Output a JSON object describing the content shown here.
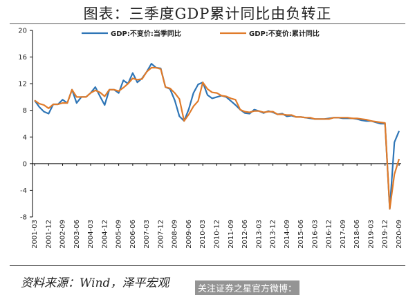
{
  "title": "图表：三季度GDP累计同比由负转正",
  "source": "资料来源：Wind，泽平宏观",
  "watermark": "关注证券之星官方微博：",
  "colors": {
    "series_single_quarter": "#2E75B6",
    "series_cumulative": "#E07B2A",
    "axis": "#000000"
  },
  "chart_data": {
    "type": "line",
    "ylim": [
      -8,
      20
    ],
    "yticks": [
      -8,
      -4,
      0,
      4,
      8,
      12,
      16,
      20
    ],
    "grid": false,
    "legend_position": "top",
    "xlabels": [
      "2001-03",
      "2001-12",
      "2002-09",
      "2003-06",
      "2004-03",
      "2004-12",
      "2005-09",
      "2006-06",
      "2007-03",
      "2007-12",
      "2008-09",
      "2009-06",
      "2010-03",
      "2010-12",
      "2011-09",
      "2012-06",
      "2013-03",
      "2013-12",
      "2014-09",
      "2015-06",
      "2016-03",
      "2016-12",
      "2017-09",
      "2018-06",
      "2019-03",
      "2019-12",
      "2020-09"
    ],
    "series": [
      {
        "name": "GDP:不变价:当季同比",
        "color": "#2E75B6",
        "values": [
          [
            "2001-03",
            9.5
          ],
          [
            "2001-06",
            8.5
          ],
          [
            "2001-09",
            7.8
          ],
          [
            "2001-12",
            7.5
          ],
          [
            "2002-03",
            8.9
          ],
          [
            "2002-06",
            8.9
          ],
          [
            "2002-09",
            9.6
          ],
          [
            "2002-12",
            9.1
          ],
          [
            "2003-03",
            11.1
          ],
          [
            "2003-06",
            9.1
          ],
          [
            "2003-09",
            10.0
          ],
          [
            "2003-12",
            10.0
          ],
          [
            "2004-03",
            10.6
          ],
          [
            "2004-06",
            11.5
          ],
          [
            "2004-09",
            10.1
          ],
          [
            "2004-12",
            8.8
          ],
          [
            "2005-03",
            11.1
          ],
          [
            "2005-06",
            11.1
          ],
          [
            "2005-09",
            10.6
          ],
          [
            "2005-12",
            12.5
          ],
          [
            "2006-03",
            12.0
          ],
          [
            "2006-06",
            13.6
          ],
          [
            "2006-09",
            12.2
          ],
          [
            "2006-12",
            12.8
          ],
          [
            "2007-03",
            13.8
          ],
          [
            "2007-06",
            15.0
          ],
          [
            "2007-09",
            14.4
          ],
          [
            "2007-12",
            14.3
          ],
          [
            "2008-03",
            11.5
          ],
          [
            "2008-06",
            11.2
          ],
          [
            "2008-09",
            9.5
          ],
          [
            "2008-12",
            7.1
          ],
          [
            "2009-03",
            6.4
          ],
          [
            "2009-06",
            8.2
          ],
          [
            "2009-09",
            10.6
          ],
          [
            "2009-12",
            11.9
          ],
          [
            "2010-03",
            12.2
          ],
          [
            "2010-06",
            10.3
          ],
          [
            "2010-09",
            9.8
          ],
          [
            "2010-12",
            10.0
          ],
          [
            "2011-03",
            10.2
          ],
          [
            "2011-06",
            10.0
          ],
          [
            "2011-09",
            9.4
          ],
          [
            "2011-12",
            8.8
          ],
          [
            "2012-03",
            8.1
          ],
          [
            "2012-06",
            7.6
          ],
          [
            "2012-09",
            7.5
          ],
          [
            "2012-12",
            8.1
          ],
          [
            "2013-03",
            7.9
          ],
          [
            "2013-06",
            7.6
          ],
          [
            "2013-09",
            7.9
          ],
          [
            "2013-12",
            7.7
          ],
          [
            "2014-03",
            7.4
          ],
          [
            "2014-06",
            7.5
          ],
          [
            "2014-09",
            7.1
          ],
          [
            "2014-12",
            7.2
          ],
          [
            "2015-03",
            7.0
          ],
          [
            "2015-06",
            7.0
          ],
          [
            "2015-09",
            6.9
          ],
          [
            "2015-12",
            6.8
          ],
          [
            "2016-03",
            6.7
          ],
          [
            "2016-06",
            6.7
          ],
          [
            "2016-09",
            6.7
          ],
          [
            "2016-12",
            6.8
          ],
          [
            "2017-03",
            6.9
          ],
          [
            "2017-06",
            6.9
          ],
          [
            "2017-09",
            6.8
          ],
          [
            "2017-12",
            6.8
          ],
          [
            "2018-03",
            6.8
          ],
          [
            "2018-06",
            6.7
          ],
          [
            "2018-09",
            6.5
          ],
          [
            "2018-12",
            6.4
          ],
          [
            "2019-03",
            6.4
          ],
          [
            "2019-06",
            6.2
          ],
          [
            "2019-09",
            6.0
          ],
          [
            "2019-12",
            6.0
          ],
          [
            "2020-03",
            -6.8
          ],
          [
            "2020-06",
            3.2
          ],
          [
            "2020-09",
            4.9
          ]
        ]
      },
      {
        "name": "GDP:不变价:累计同比",
        "color": "#E07B2A",
        "values": [
          [
            "2001-03",
            9.5
          ],
          [
            "2001-06",
            9.0
          ],
          [
            "2001-09",
            8.8
          ],
          [
            "2001-12",
            8.3
          ],
          [
            "2002-03",
            8.9
          ],
          [
            "2002-06",
            8.9
          ],
          [
            "2002-09",
            9.1
          ],
          [
            "2002-12",
            9.1
          ],
          [
            "2003-03",
            11.1
          ],
          [
            "2003-06",
            10.0
          ],
          [
            "2003-09",
            10.0
          ],
          [
            "2003-12",
            10.0
          ],
          [
            "2004-03",
            10.6
          ],
          [
            "2004-06",
            11.0
          ],
          [
            "2004-09",
            10.7
          ],
          [
            "2004-12",
            10.1
          ],
          [
            "2005-03",
            11.1
          ],
          [
            "2005-06",
            11.1
          ],
          [
            "2005-09",
            10.9
          ],
          [
            "2005-12",
            11.4
          ],
          [
            "2006-03",
            12.0
          ],
          [
            "2006-06",
            12.8
          ],
          [
            "2006-09",
            12.6
          ],
          [
            "2006-12",
            12.7
          ],
          [
            "2007-03",
            13.8
          ],
          [
            "2007-06",
            14.4
          ],
          [
            "2007-09",
            14.4
          ],
          [
            "2007-12",
            14.2
          ],
          [
            "2008-03",
            11.5
          ],
          [
            "2008-06",
            11.3
          ],
          [
            "2008-09",
            10.6
          ],
          [
            "2008-12",
            9.7
          ],
          [
            "2009-03",
            6.4
          ],
          [
            "2009-06",
            7.4
          ],
          [
            "2009-09",
            8.6
          ],
          [
            "2009-12",
            9.4
          ],
          [
            "2010-03",
            12.2
          ],
          [
            "2010-06",
            11.2
          ],
          [
            "2010-09",
            10.7
          ],
          [
            "2010-12",
            10.6
          ],
          [
            "2011-03",
            10.2
          ],
          [
            "2011-06",
            10.1
          ],
          [
            "2011-09",
            9.8
          ],
          [
            "2011-12",
            9.6
          ],
          [
            "2012-03",
            8.1
          ],
          [
            "2012-06",
            7.8
          ],
          [
            "2012-09",
            7.7
          ],
          [
            "2012-12",
            7.9
          ],
          [
            "2013-03",
            7.9
          ],
          [
            "2013-06",
            7.7
          ],
          [
            "2013-09",
            7.8
          ],
          [
            "2013-12",
            7.8
          ],
          [
            "2014-03",
            7.4
          ],
          [
            "2014-06",
            7.4
          ],
          [
            "2014-09",
            7.3
          ],
          [
            "2014-12",
            7.3
          ],
          [
            "2015-03",
            7.0
          ],
          [
            "2015-06",
            7.0
          ],
          [
            "2015-09",
            6.9
          ],
          [
            "2015-12",
            6.9
          ],
          [
            "2016-03",
            6.7
          ],
          [
            "2016-06",
            6.7
          ],
          [
            "2016-09",
            6.7
          ],
          [
            "2016-12",
            6.7
          ],
          [
            "2017-03",
            6.9
          ],
          [
            "2017-06",
            6.9
          ],
          [
            "2017-09",
            6.9
          ],
          [
            "2017-12",
            6.9
          ],
          [
            "2018-03",
            6.8
          ],
          [
            "2018-06",
            6.8
          ],
          [
            "2018-09",
            6.7
          ],
          [
            "2018-12",
            6.6
          ],
          [
            "2019-03",
            6.4
          ],
          [
            "2019-06",
            6.3
          ],
          [
            "2019-09",
            6.2
          ],
          [
            "2019-12",
            6.1
          ],
          [
            "2020-03",
            -6.8
          ],
          [
            "2020-06",
            -1.6
          ],
          [
            "2020-09",
            0.7
          ]
        ]
      }
    ]
  }
}
